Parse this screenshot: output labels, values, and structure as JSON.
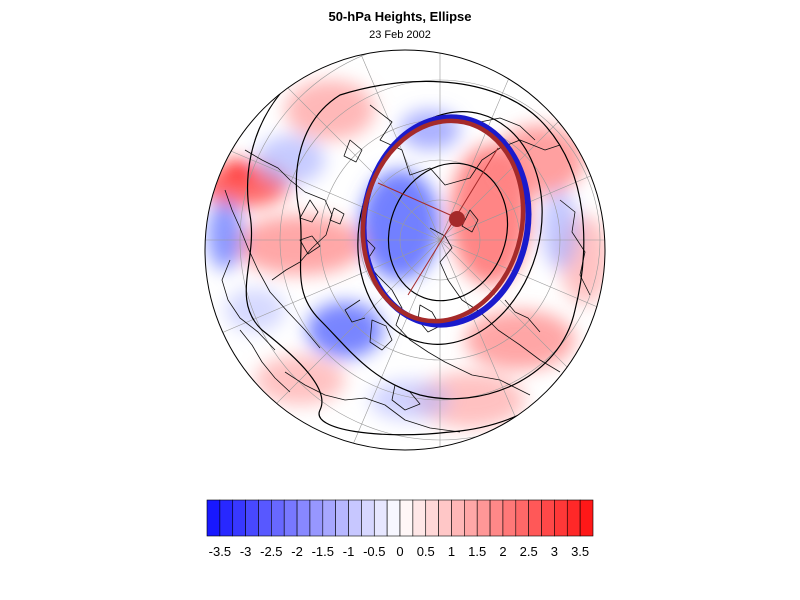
{
  "title": "50-hPa Heights, Ellipse",
  "date": "23 Feb 2002",
  "colorbar": {
    "tick_labels": [
      "-3.5",
      "-3",
      "-2.5",
      "-2",
      "-1.5",
      "-1",
      "-0.5",
      "0",
      "0.5",
      "1",
      "1.5",
      "2",
      "2.5",
      "3",
      "3.5"
    ],
    "min": -3.75,
    "max": 3.75,
    "step": 0.25,
    "negative_color": "#1010ff",
    "positive_color": "#ff1010"
  },
  "colors": {
    "ellipse_blue": "#1a1acc",
    "ellipse_red": "#a52a2a",
    "contour": "#000000",
    "coast": "#111111",
    "grid": "#9a9a9a",
    "center_marker": "#a52a2a"
  }
}
